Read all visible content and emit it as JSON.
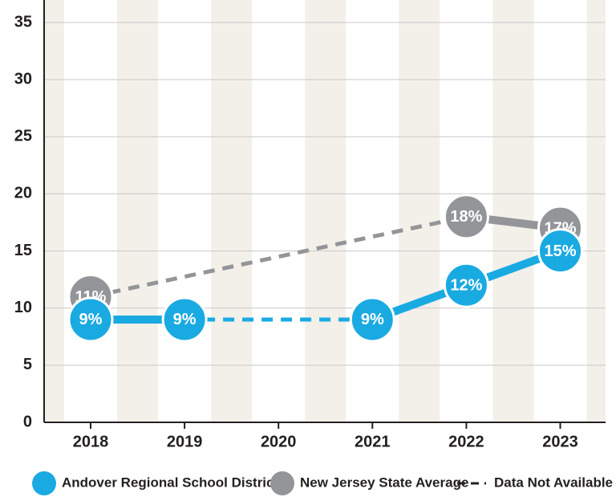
{
  "chart_data": {
    "type": "line",
    "categories": [
      "2018",
      "2019",
      "2020",
      "2021",
      "2022",
      "2023"
    ],
    "series": [
      {
        "name": "New Jersey State Average",
        "color": "#939598",
        "values": [
          11,
          null,
          null,
          null,
          18,
          17
        ],
        "value_labels": [
          "11%",
          null,
          null,
          null,
          "18%",
          "17%"
        ]
      },
      {
        "name": "Andover Regional School District",
        "color": "#1aaae2",
        "values": [
          9,
          9,
          null,
          9,
          12,
          15
        ],
        "value_labels": [
          "9%",
          "9%",
          null,
          "9%",
          "12%",
          "15%"
        ]
      }
    ],
    "gap_legend": "Data Not Available",
    "ylim": [
      0,
      35
    ],
    "yticks": [
      0,
      5,
      10,
      15,
      20,
      25,
      30,
      35
    ],
    "grid": true
  }
}
